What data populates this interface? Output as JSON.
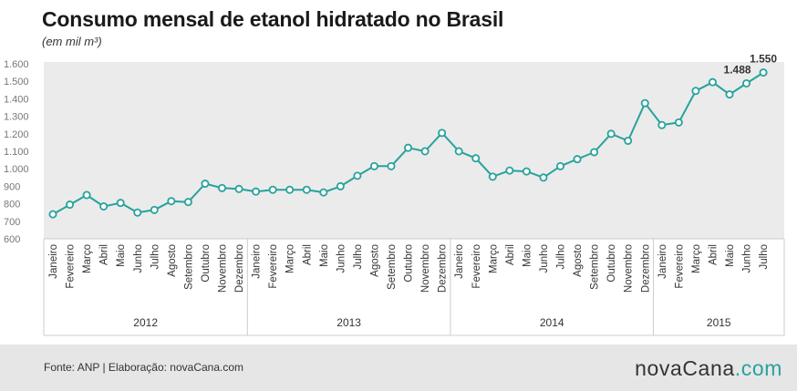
{
  "title": "Consumo mensal de etanol hidratado no Brasil",
  "subtitle": "(em mil m³)",
  "footer": {
    "source": "Fonte: ANP | Elaboração: novaCana.com",
    "logo_part1": "novaCana",
    "logo_part2": ".com"
  },
  "colors": {
    "line": "#27a29c",
    "marker_fill": "#ffffff",
    "band": "#ebebeb",
    "footer_bg": "#e6e6e6"
  },
  "chart_data": {
    "type": "line",
    "ylim": [
      600,
      1600
    ],
    "yticks": [
      "600",
      "700",
      "800",
      "900",
      "1.000",
      "1.100",
      "1.200",
      "1.300",
      "1.400",
      "1.500",
      "1.600"
    ],
    "grid": false,
    "categories": [
      "Janeiro",
      "Fevereiro",
      "Março",
      "Abril",
      "Maio",
      "Junho",
      "Julho",
      "Agosto",
      "Setembro",
      "Outubro",
      "Novembro",
      "Dezembro",
      "Janeiro",
      "Fevereiro",
      "Março",
      "Abril",
      "Maio",
      "Junho",
      "Julho",
      "Agosto",
      "Setembro",
      "Outubro",
      "Novembro",
      "Dezembro",
      "Janeiro",
      "Fevereiro",
      "Março",
      "Abril",
      "Maio",
      "Junho",
      "Julho",
      "Agosto",
      "Setembro",
      "Outubro",
      "Novembro",
      "Dezembro",
      "Janeiro",
      "Fevereiro",
      "Março",
      "Abril",
      "Maio",
      "Junho",
      "Julho"
    ],
    "years": [
      {
        "label": "2012",
        "months": 12
      },
      {
        "label": "2013",
        "months": 12
      },
      {
        "label": "2014",
        "months": 12
      },
      {
        "label": "2015",
        "months": 7
      }
    ],
    "values": [
      740,
      795,
      850,
      785,
      805,
      750,
      765,
      815,
      810,
      915,
      890,
      885,
      870,
      880,
      880,
      880,
      865,
      900,
      960,
      1015,
      1015,
      1120,
      1100,
      1205,
      1100,
      1060,
      955,
      990,
      985,
      950,
      1015,
      1055,
      1095,
      1200,
      1160,
      1375,
      1250,
      1265,
      1445,
      1495,
      1425,
      1488,
      1550
    ],
    "data_labels": [
      {
        "index": 41,
        "text": "1.488"
      },
      {
        "index": 42,
        "text": "1.550"
      }
    ]
  }
}
